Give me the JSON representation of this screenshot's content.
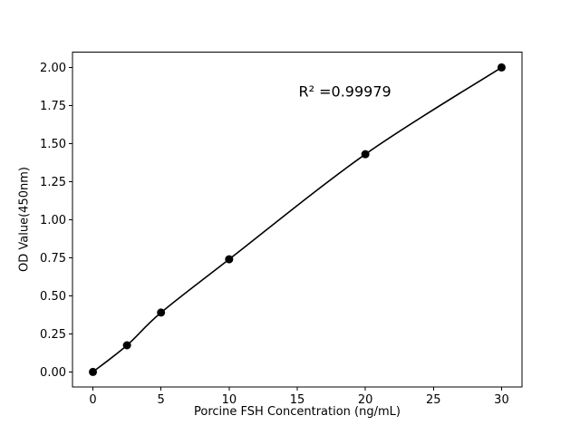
{
  "chart_data": {
    "type": "scatter",
    "title": "",
    "xlabel": "Porcine FSH Concentration (ng/mL)",
    "ylabel": "OD Value(450nm)",
    "x": [
      0,
      2.5,
      5,
      10,
      20,
      30
    ],
    "y": [
      0.0,
      0.175,
      0.39,
      0.74,
      1.43,
      2.0
    ],
    "fit_line": "smooth curve through points",
    "xlim": [
      -1.5,
      31.5
    ],
    "ylim": [
      -0.1,
      2.1
    ],
    "xticks": {
      "values": [
        0,
        5,
        10,
        15,
        20,
        25,
        30
      ],
      "labels": [
        "0",
        "5",
        "10",
        "15",
        "20",
        "25",
        "30"
      ]
    },
    "yticks": {
      "values": [
        0.0,
        0.25,
        0.5,
        0.75,
        1.0,
        1.25,
        1.5,
        1.75,
        2.0
      ],
      "labels": [
        "0.00",
        "0.25",
        "0.50",
        "0.75",
        "1.00",
        "1.25",
        "1.50",
        "1.75",
        "2.00"
      ]
    },
    "annotation": {
      "text": "R² =0.99979",
      "x": 18.5,
      "y": 1.84
    },
    "grid": false,
    "legend": null,
    "line_color": "#000000",
    "marker_color": "#000000",
    "background": "#ffffff"
  }
}
